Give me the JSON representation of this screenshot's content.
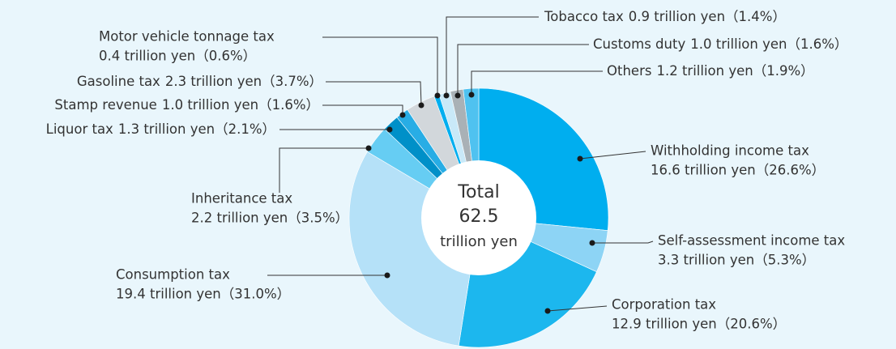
{
  "chart_data": {
    "type": "pie",
    "categories": [
      "Withholding income tax",
      "Self-assessment income tax",
      "Corporation tax",
      "Consumption tax",
      "Inheritance tax",
      "Liquor tax",
      "Stamp revenue",
      "Gasoline tax",
      "Motor vehicle tonnage tax",
      "Tobacco tax",
      "Customs duty",
      "Others"
    ],
    "values": [
      16.6,
      3.3,
      12.9,
      19.4,
      2.2,
      1.3,
      1.0,
      2.3,
      0.4,
      0.9,
      1.0,
      1.2
    ],
    "value_labels": [
      "16.6 trillion yen（26.6%）",
      "3.3 trillion yen（5.3%）",
      "12.9 trillion yen（20.6%）",
      "19.4 trillion yen（31.0%）",
      "2.2 trillion yen（3.5%）",
      "1.3 trillion yen（2.1%）",
      "1.0 trillion yen（1.6%）",
      "2.3 trillion yen（3.7%）",
      "0.4 trillion yen（0.6%）",
      "0.9 trillion yen（1.4%）",
      "1.0 trillion yen（1.6%）",
      "1.2 trillion yen（1.9%）"
    ],
    "colors": [
      "#00aeef",
      "#8dd4f5",
      "#1cb7ee",
      "#b5e1f8",
      "#66cdf3",
      "#0090c8",
      "#28ade5",
      "#d2d7db",
      "#00aeef",
      "#c9e9f8",
      "#a9b1b6",
      "#4fc2f0"
    ],
    "center": {
      "label": "Total",
      "total": 62.5,
      "unit": "trillion yen"
    }
  }
}
